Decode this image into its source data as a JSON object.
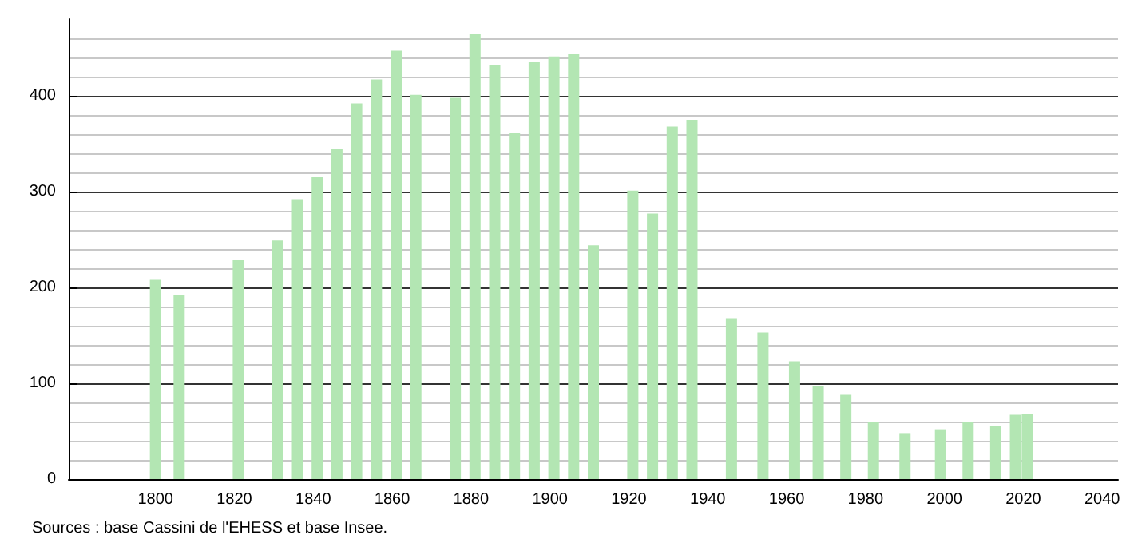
{
  "chart_data": {
    "type": "bar",
    "x": [
      1800,
      1806,
      1821,
      1831,
      1836,
      1841,
      1846,
      1851,
      1856,
      1861,
      1866,
      1876,
      1881,
      1886,
      1891,
      1896,
      1901,
      1906,
      1911,
      1921,
      1926,
      1931,
      1936,
      1946,
      1954,
      1962,
      1968,
      1975,
      1982,
      1990,
      1999,
      2006,
      2013,
      2018,
      2021
    ],
    "values": [
      208,
      192,
      229,
      249,
      292,
      315,
      345,
      392,
      417,
      447,
      401,
      398,
      465,
      432,
      361,
      435,
      441,
      444,
      244,
      301,
      277,
      368,
      375,
      168,
      153,
      123,
      97,
      88,
      60,
      48,
      52,
      60,
      55,
      67,
      68
    ],
    "color": "#b3e6b3",
    "xlim": [
      1778,
      2044
    ],
    "xticks": [
      1800,
      1820,
      1840,
      1860,
      1880,
      1900,
      1920,
      1940,
      1960,
      1980,
      2000,
      2020,
      2040
    ],
    "ylim": [
      0,
      480
    ],
    "yticks": [
      0,
      100,
      200,
      300,
      400
    ],
    "grid": "y",
    "annotations": [
      "Sources : base Cassini de l'EHESS et base Insee."
    ]
  }
}
